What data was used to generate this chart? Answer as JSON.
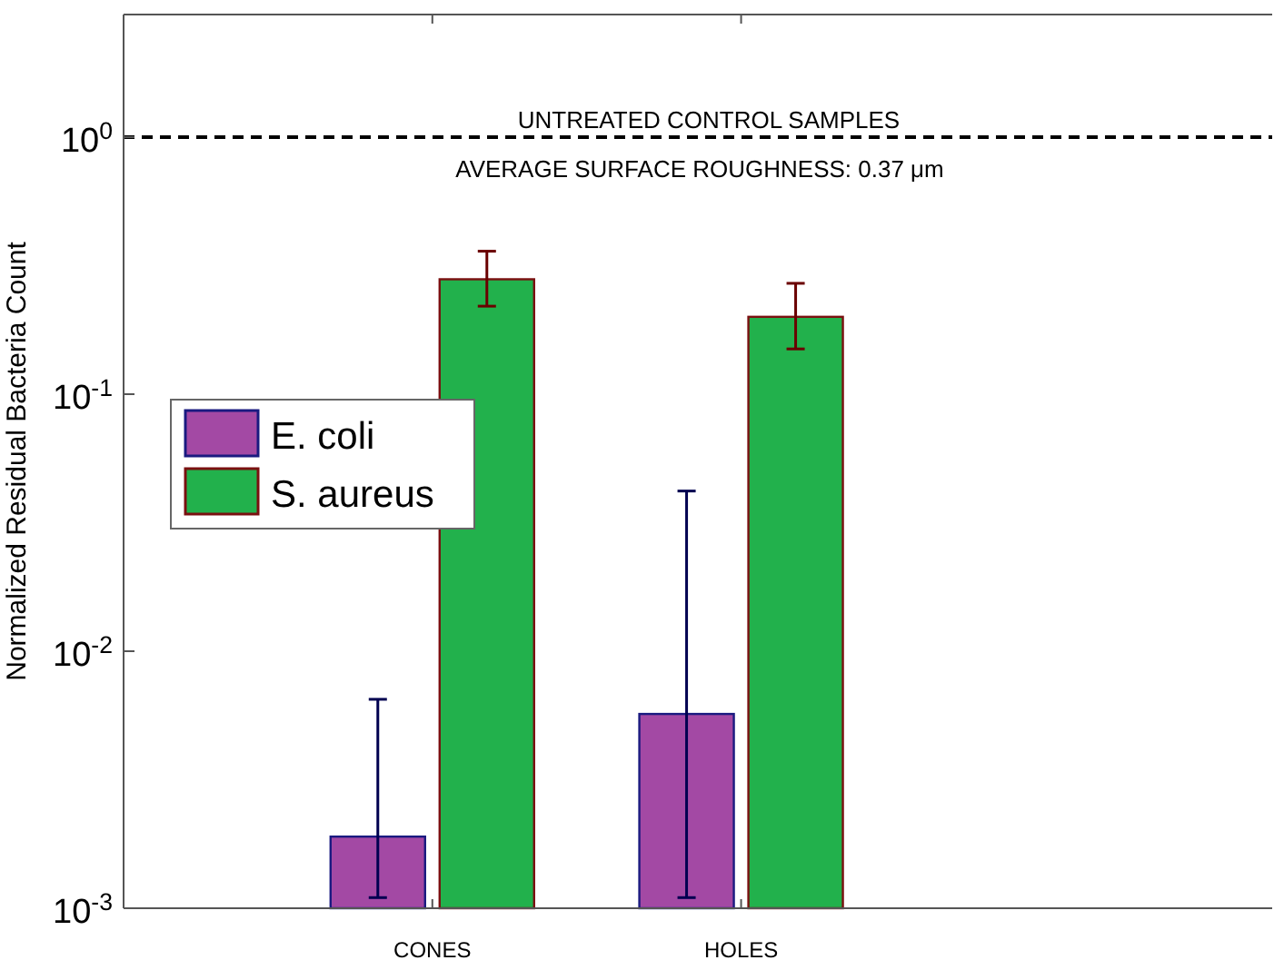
{
  "chart_data": {
    "type": "bar",
    "ylabel": "Normalized Residual Bacteria Count",
    "categories": [
      "CONES",
      "HOLES"
    ],
    "series": [
      {
        "name": "E. coli",
        "color": "#a349a4",
        "values": [
          0.0019,
          0.0057
        ],
        "errors": [
          [
            0.0011,
            0.0065
          ],
          [
            0.0011,
            0.042
          ]
        ]
      },
      {
        "name": "S. aureus",
        "color": "#22b14c",
        "values": [
          0.28,
          0.2
        ],
        "errors": [
          [
            0.22,
            0.36
          ],
          [
            0.15,
            0.27
          ]
        ]
      }
    ],
    "log": true,
    "ylim": [
      0.001,
      3
    ],
    "yticks": [
      {
        "value": 0.001,
        "label": "10$^{-3}$"
      },
      {
        "value": 0.01,
        "label": "10$^{-2}$"
      },
      {
        "value": 0.1,
        "label": "10$^{-1}$"
      },
      {
        "value": 1,
        "label": "10$^{0}$"
      }
    ],
    "ref_lines": [
      {
        "axis": "y",
        "value": 1,
        "label": "UNTREATED CONTROL SAMPLES",
        "line_style": "dashed",
        "color": "#000000"
      }
    ],
    "annotations": [
      "AVERAGE SURFACE ROUGHNESS: 0.37  μm"
    ],
    "legend": "left",
    "grid": false
  }
}
